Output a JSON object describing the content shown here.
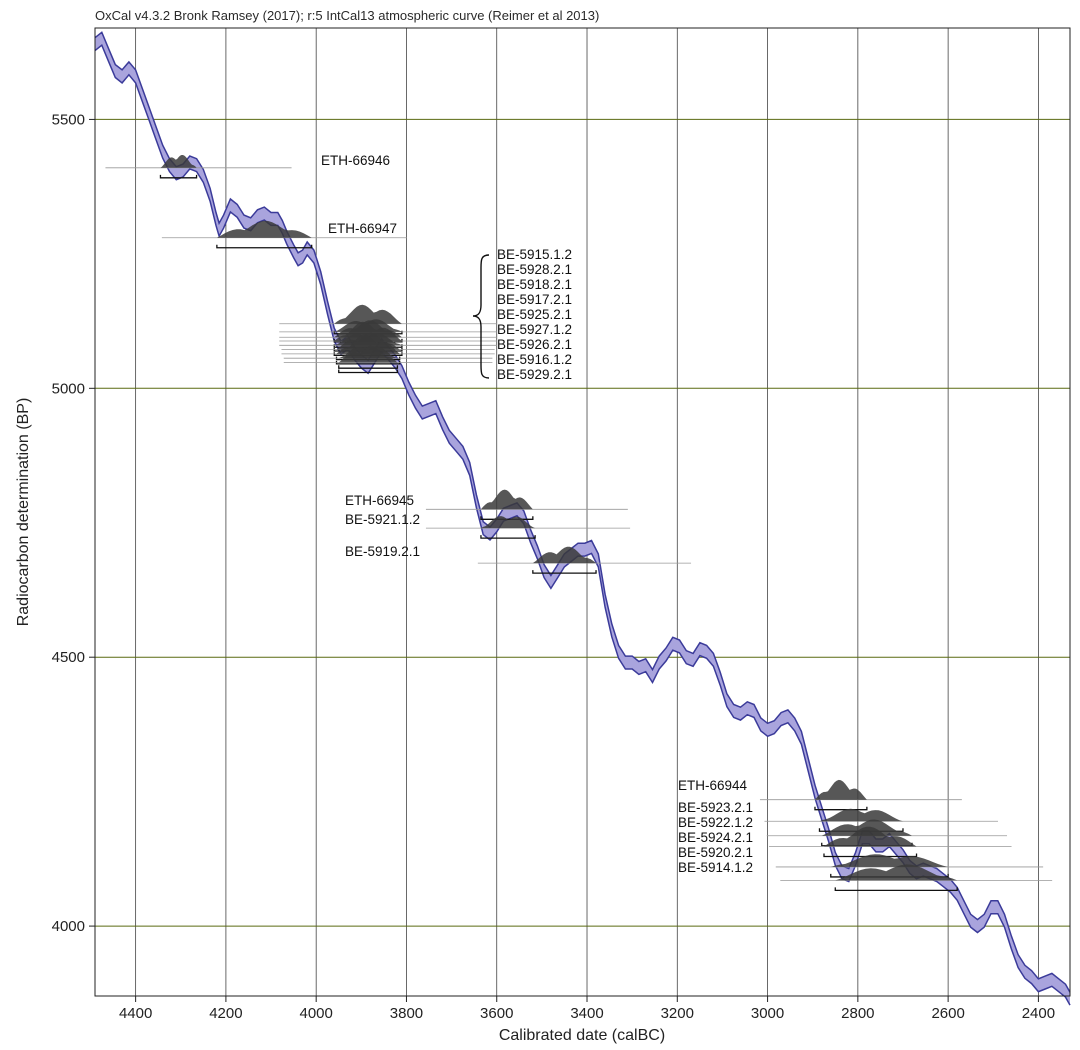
{
  "chart_data": {
    "type": "line",
    "title": "OxCal v4.3.2 Bronk Ramsey (2017); r:5 IntCal13 atmospheric curve (Reimer et al 2013)",
    "xlabel": "Calibrated date (calBC)",
    "ylabel": "Radiocarbon determination (BP)",
    "xlim": [
      4490,
      2330
    ],
    "ylim": [
      3870,
      5670
    ],
    "x_reversed": true,
    "x_ticks": [
      4400,
      4200,
      4000,
      3800,
      3600,
      3400,
      3200,
      3000,
      2800,
      2600,
      2400
    ],
    "y_ticks": [
      4000,
      4500,
      5000,
      5500
    ],
    "grid": true,
    "curve": {
      "name": "IntCal13",
      "color": "#3b3b9a",
      "fill": "#a9a4dd",
      "points": [
        [
          4490,
          5640
        ],
        [
          4475,
          5650
        ],
        [
          4460,
          5620
        ],
        [
          4445,
          5590
        ],
        [
          4430,
          5580
        ],
        [
          4415,
          5595
        ],
        [
          4400,
          5580
        ],
        [
          4385,
          5545
        ],
        [
          4370,
          5510
        ],
        [
          4355,
          5475
        ],
        [
          4340,
          5440
        ],
        [
          4325,
          5415
        ],
        [
          4310,
          5400
        ],
        [
          4295,
          5405
        ],
        [
          4280,
          5420
        ],
        [
          4265,
          5415
        ],
        [
          4250,
          5395
        ],
        [
          4235,
          5360
        ],
        [
          4222,
          5315
        ],
        [
          4215,
          5295
        ],
        [
          4205,
          5310
        ],
        [
          4190,
          5340
        ],
        [
          4175,
          5330
        ],
        [
          4160,
          5310
        ],
        [
          4145,
          5305
        ],
        [
          4130,
          5320
        ],
        [
          4115,
          5325
        ],
        [
          4100,
          5315
        ],
        [
          4085,
          5315
        ],
        [
          4075,
          5300
        ],
        [
          4065,
          5280
        ],
        [
          4050,
          5255
        ],
        [
          4040,
          5240
        ],
        [
          4030,
          5245
        ],
        [
          4020,
          5260
        ],
        [
          4005,
          5245
        ],
        [
          3990,
          5205
        ],
        [
          3975,
          5150
        ],
        [
          3960,
          5100
        ],
        [
          3945,
          5075
        ],
        [
          3930,
          5085
        ],
        [
          3915,
          5065
        ],
        [
          3900,
          5050
        ],
        [
          3885,
          5040
        ],
        [
          3870,
          5060
        ],
        [
          3855,
          5080
        ],
        [
          3840,
          5065
        ],
        [
          3825,
          5050
        ],
        [
          3810,
          5030
        ],
        [
          3795,
          5000
        ],
        [
          3780,
          4975
        ],
        [
          3765,
          4955
        ],
        [
          3750,
          4960
        ],
        [
          3735,
          4965
        ],
        [
          3720,
          4935
        ],
        [
          3705,
          4910
        ],
        [
          3690,
          4895
        ],
        [
          3675,
          4880
        ],
        [
          3660,
          4850
        ],
        [
          3645,
          4790
        ],
        [
          3630,
          4740
        ],
        [
          3615,
          4730
        ],
        [
          3600,
          4745
        ],
        [
          3585,
          4765
        ],
        [
          3570,
          4770
        ],
        [
          3555,
          4775
        ],
        [
          3540,
          4760
        ],
        [
          3525,
          4725
        ],
        [
          3510,
          4695
        ],
        [
          3495,
          4660
        ],
        [
          3480,
          4640
        ],
        [
          3465,
          4660
        ],
        [
          3450,
          4680
        ],
        [
          3435,
          4690
        ],
        [
          3420,
          4700
        ],
        [
          3405,
          4700
        ],
        [
          3390,
          4705
        ],
        [
          3375,
          4680
        ],
        [
          3360,
          4605
        ],
        [
          3345,
          4550
        ],
        [
          3330,
          4510
        ],
        [
          3315,
          4490
        ],
        [
          3300,
          4490
        ],
        [
          3285,
          4480
        ],
        [
          3270,
          4485
        ],
        [
          3255,
          4465
        ],
        [
          3240,
          4490
        ],
        [
          3225,
          4505
        ],
        [
          3210,
          4525
        ],
        [
          3195,
          4520
        ],
        [
          3180,
          4500
        ],
        [
          3165,
          4495
        ],
        [
          3150,
          4515
        ],
        [
          3135,
          4510
        ],
        [
          3120,
          4495
        ],
        [
          3105,
          4460
        ],
        [
          3090,
          4420
        ],
        [
          3075,
          4400
        ],
        [
          3060,
          4395
        ],
        [
          3045,
          4405
        ],
        [
          3030,
          4400
        ],
        [
          3015,
          4375
        ],
        [
          3000,
          4365
        ],
        [
          2985,
          4370
        ],
        [
          2970,
          4385
        ],
        [
          2955,
          4390
        ],
        [
          2940,
          4375
        ],
        [
          2925,
          4350
        ],
        [
          2910,
          4300
        ],
        [
          2895,
          4250
        ],
        [
          2880,
          4210
        ],
        [
          2865,
          4170
        ],
        [
          2850,
          4125
        ],
        [
          2835,
          4100
        ],
        [
          2820,
          4095
        ],
        [
          2805,
          4125
        ],
        [
          2790,
          4165
        ],
        [
          2775,
          4165
        ],
        [
          2760,
          4150
        ],
        [
          2745,
          4150
        ],
        [
          2730,
          4160
        ],
        [
          2715,
          4145
        ],
        [
          2700,
          4130
        ],
        [
          2685,
          4110
        ],
        [
          2670,
          4100
        ],
        [
          2655,
          4105
        ],
        [
          2640,
          4100
        ],
        [
          2625,
          4095
        ],
        [
          2610,
          4085
        ],
        [
          2595,
          4075
        ],
        [
          2580,
          4060
        ],
        [
          2565,
          4035
        ],
        [
          2550,
          4010
        ],
        [
          2535,
          4000
        ],
        [
          2520,
          4010
        ],
        [
          2505,
          4035
        ],
        [
          2490,
          4035
        ],
        [
          2475,
          4010
        ],
        [
          2460,
          3970
        ],
        [
          2445,
          3935
        ],
        [
          2430,
          3915
        ],
        [
          2415,
          3905
        ],
        [
          2400,
          3890
        ],
        [
          2385,
          3895
        ],
        [
          2370,
          3900
        ],
        [
          2355,
          3890
        ],
        [
          2340,
          3880
        ],
        [
          2330,
          3865
        ]
      ]
    },
    "samples": [
      {
        "name": "ETH-66946",
        "bp": 5410,
        "range": [
          4345,
          4265
        ]
      },
      {
        "name": "ETH-66947",
        "bp": 5280,
        "range": [
          4220,
          4010
        ]
      },
      {
        "name": "BE-5915.1.2",
        "bp": 5120,
        "range": [
          3960,
          3810
        ]
      },
      {
        "name": "BE-5928.2.1",
        "bp": 5105,
        "range": [
          3960,
          3810
        ]
      },
      {
        "name": "BE-5918.2.1",
        "bp": 5095,
        "range": [
          3960,
          3810
        ]
      },
      {
        "name": "BE-5917.2.1",
        "bp": 5088,
        "range": [
          3960,
          3810
        ]
      },
      {
        "name": "BE-5925.2.1",
        "bp": 5080,
        "range": [
          3960,
          3810
        ]
      },
      {
        "name": "BE-5927.1.2",
        "bp": 5072,
        "range": [
          3955,
          3815
        ]
      },
      {
        "name": "BE-5926.2.1",
        "bp": 5064,
        "range": [
          3955,
          3815
        ]
      },
      {
        "name": "BE-5916.1.2",
        "bp": 5056,
        "range": [
          3950,
          3820
        ]
      },
      {
        "name": "BE-5929.2.1",
        "bp": 5048,
        "range": [
          3950,
          3820
        ]
      },
      {
        "name": "ETH-66945",
        "bp": 4775,
        "range": [
          3635,
          3520
        ]
      },
      {
        "name": "BE-5921.1.2",
        "bp": 4740,
        "range": [
          3635,
          3515
        ]
      },
      {
        "name": "BE-5919.2.1",
        "bp": 4675,
        "range": [
          3520,
          3380
        ]
      },
      {
        "name": "ETH-66944",
        "bp": 4235,
        "range": [
          2895,
          2780
        ]
      },
      {
        "name": "BE-5923.2.1",
        "bp": 4195,
        "range": [
          2885,
          2700
        ]
      },
      {
        "name": "BE-5922.1.2",
        "bp": 4168,
        "range": [
          2880,
          2680
        ]
      },
      {
        "name": "BE-5924.2.1",
        "bp": 4148,
        "range": [
          2875,
          2670
        ]
      },
      {
        "name": "BE-5920.2.1",
        "bp": 4110,
        "range": [
          2860,
          2600
        ]
      },
      {
        "name": "BE-5914.1.2",
        "bp": 4085,
        "range": [
          2850,
          2580
        ]
      }
    ]
  }
}
